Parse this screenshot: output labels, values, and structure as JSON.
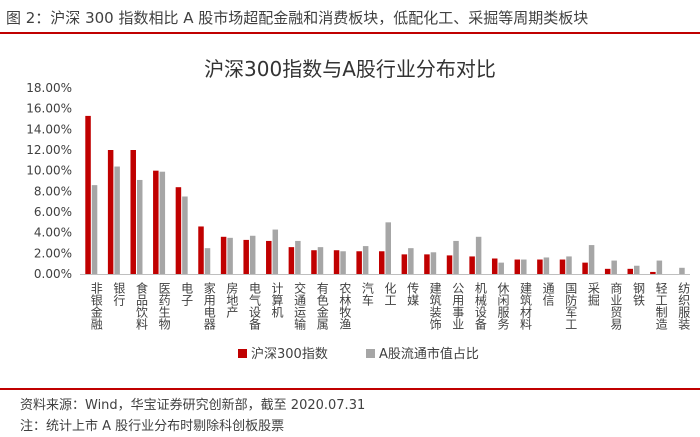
{
  "figure_title": "图 2：沪深 300 指数相比 A 股市场超配金融和消费板块，低配化工、采掘等周期类板块",
  "source_text": "资料来源：Wind，华宝证券研究创新部，截至 2020.07.31",
  "note_text": "注：统计上市 A 股行业分布时剔除科创板股票",
  "colors": {
    "hs300": "#c00000",
    "a_share": "#a6a6a6",
    "rule": "#c00000"
  },
  "chart_data": {
    "type": "bar",
    "title": "沪深300指数与A股行业分布对比",
    "xlabel": "",
    "ylabel": "",
    "ylim": [
      0,
      18
    ],
    "y_ticks": [
      "0.00%",
      "2.00%",
      "4.00%",
      "6.00%",
      "8.00%",
      "10.00%",
      "12.00%",
      "14.00%",
      "16.00%",
      "18.00%"
    ],
    "grid": false,
    "legend_position": "bottom",
    "categories": [
      "非银金融",
      "银行",
      "食品饮料",
      "医药生物",
      "电子",
      "家用电器",
      "房地产",
      "电气设备",
      "计算机",
      "交通运输",
      "有色金属",
      "农林牧渔",
      "汽车",
      "化工",
      "传媒",
      "建筑装饰",
      "公用事业",
      "机械设备",
      "休闲服务",
      "建筑材料",
      "通信",
      "国防军工",
      "采掘",
      "商业贸易",
      "钢铁",
      "轻工制造",
      "纺织服装"
    ],
    "series": [
      {
        "name": "沪深300指数",
        "values": [
          15.3,
          12.0,
          12.0,
          10.0,
          8.4,
          4.6,
          3.6,
          3.3,
          3.2,
          2.6,
          2.3,
          2.3,
          2.2,
          2.2,
          1.9,
          1.9,
          1.8,
          1.7,
          1.5,
          1.4,
          1.4,
          1.4,
          1.1,
          0.5,
          0.5,
          0.2,
          0.0
        ]
      },
      {
        "name": "A股流通市值占比",
        "values": [
          8.6,
          10.4,
          9.1,
          9.9,
          7.5,
          2.5,
          3.5,
          3.7,
          4.3,
          3.2,
          2.6,
          2.2,
          2.7,
          5.0,
          2.5,
          2.1,
          3.2,
          3.6,
          1.1,
          1.4,
          1.6,
          1.7,
          2.8,
          1.3,
          0.8,
          1.3,
          0.6
        ]
      }
    ]
  }
}
